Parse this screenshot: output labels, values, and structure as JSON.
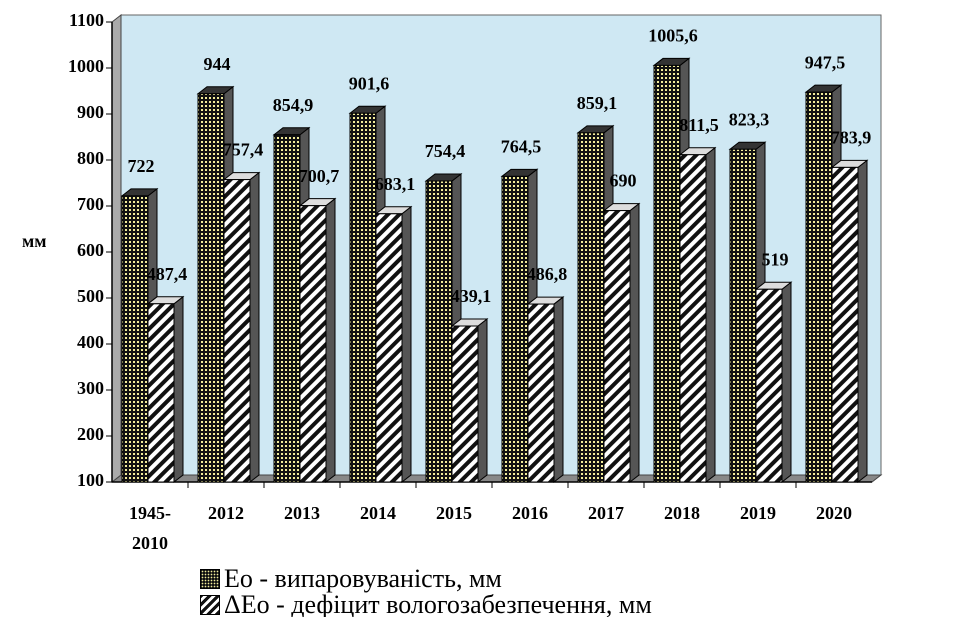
{
  "chart_data": {
    "type": "bar",
    "y_label": "мм",
    "categories": [
      "1945-2010",
      "2012",
      "2013",
      "2014",
      "2015",
      "2016",
      "2017",
      "2018",
      "2019",
      "2020"
    ],
    "series": [
      {
        "name": "Eo - випаровуваність, мм",
        "color": "#f2ec9a",
        "values": [
          722,
          944,
          854.9,
          901.6,
          754.4,
          764.5,
          859.1,
          1005.6,
          823.3,
          947.5
        ],
        "value_labels": [
          "722",
          "944",
          "854,9",
          "901,6",
          "754,4",
          "764,5",
          "859,1",
          "1005,6",
          "823,3",
          "947,5"
        ]
      },
      {
        "name": "ΔEo - дефіцит вологозабезпечення, мм",
        "color": "#ffffff",
        "values": [
          487.4,
          757.4,
          700.7,
          683.1,
          439.1,
          486.8,
          690,
          811.5,
          519,
          783.9
        ],
        "value_labels": [
          "487,4",
          "757,4",
          "700,7",
          "683,1",
          "439,1",
          "486,8",
          "690",
          "811,5",
          "519",
          "783,9"
        ]
      }
    ],
    "ylim": [
      100,
      1100
    ],
    "yticks": [
      100,
      200,
      300,
      400,
      500,
      600,
      700,
      800,
      900,
      1000,
      1100
    ],
    "grid": false,
    "legend": "bottom"
  }
}
